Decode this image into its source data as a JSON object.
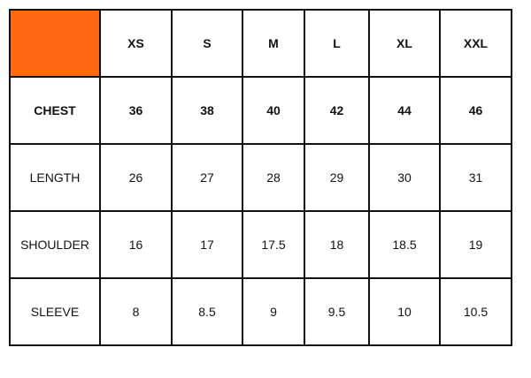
{
  "table": {
    "columns": [
      "XS",
      "S",
      "M",
      "L",
      "XL",
      "XXL"
    ],
    "rows": [
      {
        "label": "CHEST",
        "values": [
          36,
          38,
          40,
          42,
          44,
          46
        ]
      },
      {
        "label": "LENGTH",
        "values": [
          26,
          27,
          28,
          29,
          30,
          31
        ]
      },
      {
        "label": "SHOULDER",
        "values": [
          16,
          17,
          17.5,
          18,
          18.5,
          19
        ]
      },
      {
        "label": "SLEEVE",
        "values": [
          8,
          8.5,
          9,
          9.5,
          10,
          10.5
        ]
      }
    ]
  }
}
